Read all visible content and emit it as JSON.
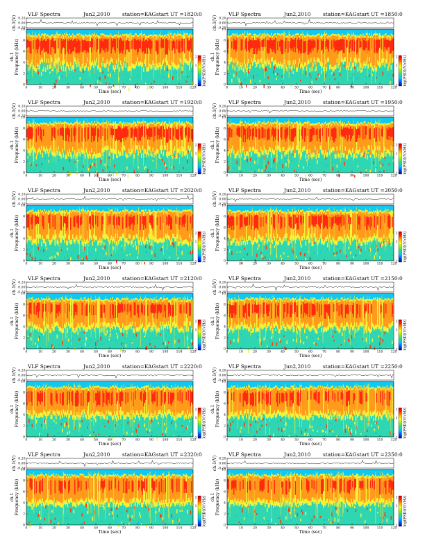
{
  "page": {
    "panels": [
      {
        "title": "VLF Spectra",
        "date": "Jun2,2010",
        "station": "station=KAG",
        "start": "start UT =1820:0"
      },
      {
        "title": "VLF Spectra",
        "date": "Jun2,2010",
        "station": "station=KAG",
        "start": "start UT =1850:0"
      },
      {
        "title": "VLF Spectra",
        "date": "Jun2,2010",
        "station": "station=KAG",
        "start": "start UT =1920:0"
      },
      {
        "title": "VLF Spectra",
        "date": "Jun2,2010",
        "station": "station=KAG",
        "start": "start UT =1950:0"
      },
      {
        "title": "VLF Spectra",
        "date": "Jun2,2010",
        "station": "station=KAG",
        "start": "start UT =2020:0"
      },
      {
        "title": "VLF Spectra",
        "date": "Jun2,2010",
        "station": "station=KAG",
        "start": "start UT =2050:0"
      },
      {
        "title": "VLF Spectra",
        "date": "Jun2,2010",
        "station": "station=KAG",
        "start": "start UT =2120:0"
      },
      {
        "title": "VLF Spectra",
        "date": "Jun2,2010",
        "station": "station=KAG",
        "start": "start UT =2150:0"
      },
      {
        "title": "VLF Spectra",
        "date": "Jun2,2010",
        "station": "station=KAG",
        "start": "start UT =2220:0"
      },
      {
        "title": "VLF Spectra",
        "date": "Jun2,2010",
        "station": "station=KAG",
        "start": "start UT =2250:0"
      },
      {
        "title": "VLF Spectra",
        "date": "Jun2,2010",
        "station": "station=KAG",
        "start": "start UT =2320:0"
      },
      {
        "title": "VLF Spectra",
        "date": "Jun2,2010",
        "station": "station=KAG",
        "start": "start UT =2350:0"
      }
    ],
    "labels": {
      "ts_ylabel": "ch.1(V)",
      "spec_ylabel": "Frequency (kHz)",
      "spec_channel": "ch.1",
      "xlabel": "Time (sec)",
      "colorbar_label": "log(PSD)(V/√Hz)"
    },
    "colorscale": [
      "#0000aa",
      "#0050ff",
      "#00c8ff",
      "#22dd88",
      "#88ee22",
      "#ffff00",
      "#ffaa00",
      "#ff2200",
      "#cc0000"
    ]
  },
  "chart_data": {
    "type": "heatmap",
    "panel_count": 12,
    "xlim": [
      0,
      120
    ],
    "xticks": [
      0,
      10,
      20,
      30,
      40,
      50,
      60,
      70,
      80,
      90,
      100,
      110,
      120
    ],
    "xlabel": "Time (sec)",
    "spec_ylim": [
      0,
      10
    ],
    "spec_yticks": [
      0,
      2,
      4,
      6,
      8,
      10
    ],
    "spec_ylabel": "Frequency (kHz)",
    "ts_ylim": [
      -0.2,
      0.2
    ],
    "ts_yticks": [
      "0.20",
      "0.00",
      "-0.20"
    ],
    "ts_ylabel": "ch.1(V)",
    "colorbar_label": "log(PSD)(V/√Hz)",
    "colorbar_ticks": [
      "2",
      "1",
      "-1"
    ],
    "activity_band_khz": [
      5,
      9
    ]
  }
}
